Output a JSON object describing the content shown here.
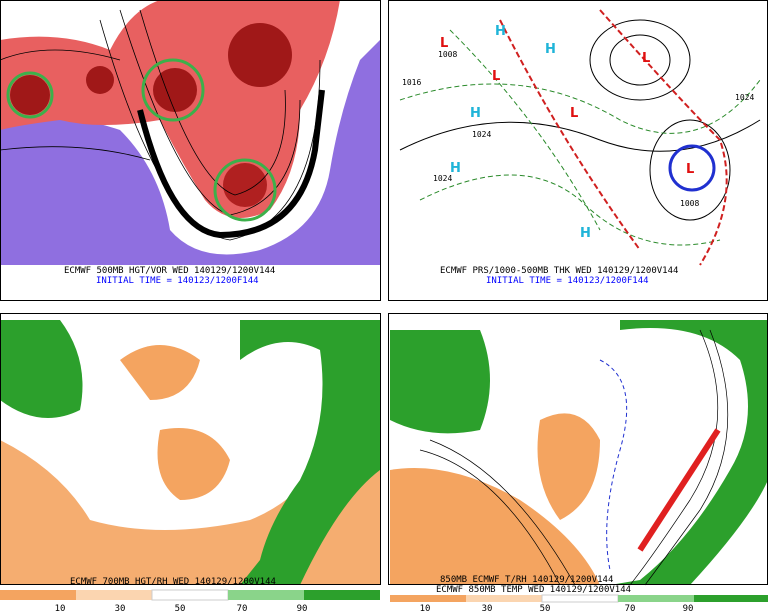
{
  "panels": [
    {
      "caption": "ECMWF 500MB HGT/VOR WED 140129/1200V144",
      "initial": "INITIAL TIME = 140123/1200F144"
    },
    {
      "caption": "ECMWF PRS/1000-500MB THK WED 140129/1200V144",
      "initial": "INITIAL TIME = 140123/1200F144",
      "labels": [
        "H",
        "H",
        "L",
        "1008",
        "1016",
        "L",
        "H",
        "1024",
        "H",
        "1024",
        "L",
        "L",
        "L",
        "1008",
        "H",
        "1024"
      ]
    },
    {
      "caption": "ECMWF 700MB HGT/RH WED 140129/1200V144",
      "colorbar": [
        "10",
        "30",
        "50",
        "70",
        "90"
      ]
    },
    {
      "caption": "850MB ECMWF T/RH 140129/1200V144",
      "caption2": "ECMWF 850MB TEMP WED 140129/1200V144",
      "colorbar": [
        "10",
        "30",
        "50",
        "70",
        "90"
      ]
    }
  ]
}
